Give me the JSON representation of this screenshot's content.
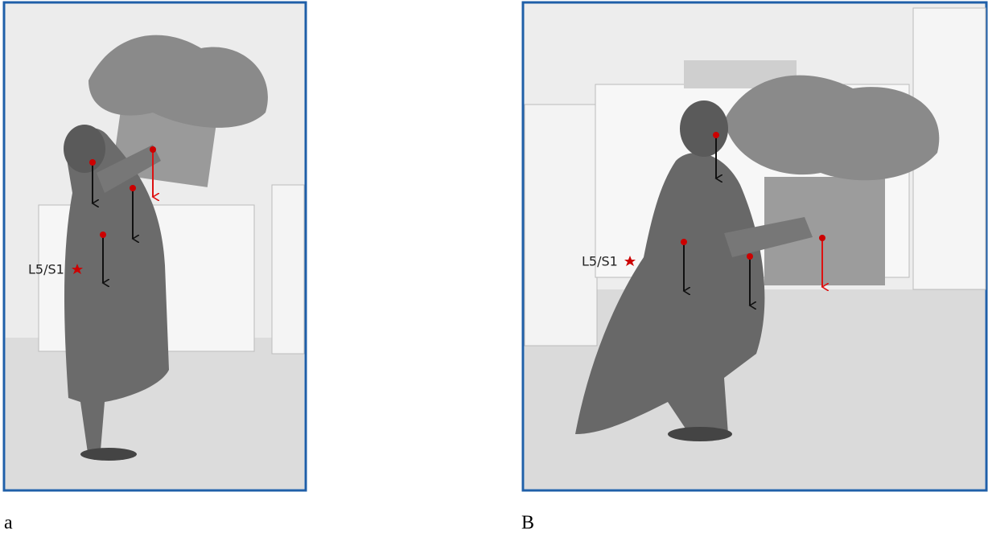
{
  "figure": {
    "panels": [
      {
        "label": "L5/S1",
        "caption": "a"
      },
      {
        "label": "L5/S1",
        "caption": "B"
      }
    ]
  }
}
